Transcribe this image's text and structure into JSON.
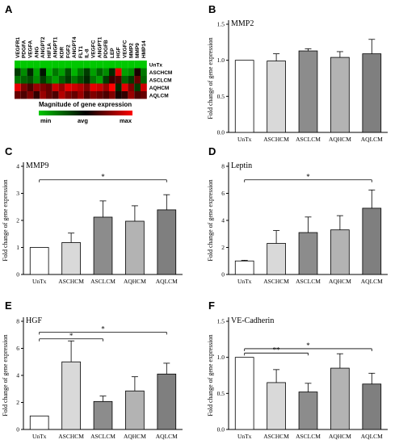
{
  "colors": {
    "untx": "#ffffff",
    "aschcm": "#d9d9d9",
    "asclcm": "#8c8c8c",
    "aqhcm": "#b3b3b3",
    "aqlcm": "#7f7f7f",
    "heat_min": "#00c800",
    "heat_avg": "#000000",
    "heat_max": "#ff0000"
  },
  "heatmap": {
    "panel_label": "A",
    "columns": [
      "VEGFR1",
      "PDGFA",
      "VEGFA",
      "ANG",
      "ANGPT2",
      "HIF1A",
      "ANGPT1",
      "KDR",
      "FGF2",
      "ANGPT4",
      "FLT1",
      "IL-8",
      "VEGFC",
      "ANGPT1",
      "PDGFB",
      "LEP",
      "HGF",
      "VEGFC",
      "MMP2",
      "MMP9",
      "HMP14"
    ],
    "rows": [
      "UnTx",
      "ASCHCM",
      "ASCLCM",
      "AQHCM",
      "AQLCM"
    ],
    "values": [
      [
        -1,
        -1,
        -1,
        -1,
        -1,
        -1,
        -1,
        -1,
        -1,
        -1,
        -1,
        -1,
        -1,
        -1,
        -1,
        -1,
        -1,
        -1,
        -1,
        -1,
        -1
      ],
      [
        -0.3,
        -0.7,
        -0.2,
        -0.8,
        -0.1,
        -0.9,
        -0.6,
        -0.8,
        -0.4,
        -0.9,
        -0.6,
        -0.3,
        -0.8,
        -0.5,
        -0.7,
        -0.2,
        0.9,
        -0.8,
        -0.7,
        0.1,
        -0.6
      ],
      [
        -0.6,
        -0.5,
        -0.4,
        -0.7,
        -0.3,
        -0.6,
        -0.8,
        -0.5,
        -0.3,
        -0.6,
        -0.4,
        -0.2,
        -0.6,
        -0.8,
        -0.3,
        0.2,
        0.3,
        -0.5,
        -0.3,
        0.4,
        -0.5
      ],
      [
        0.9,
        0.5,
        0.3,
        0.6,
        0.5,
        0.4,
        0.8,
        0.6,
        0.9,
        0.8,
        0.7,
        0.5,
        0.9,
        0.8,
        0.6,
        1,
        -0.2,
        0.9,
        0.5,
        -0.3,
        0.8
      ],
      [
        0.4,
        0.3,
        0.5,
        0.2,
        0.6,
        0.4,
        0.3,
        0.7,
        0.5,
        0.4,
        0.6,
        0.3,
        0.5,
        0.4,
        0.3,
        0.5,
        0.1,
        0.2,
        0.6,
        0.3,
        0.4
      ]
    ],
    "legend_title": "Magnitude of gene expression",
    "legend_labels": [
      "min",
      "avg",
      "max"
    ]
  },
  "chart_data": [
    {
      "panel_label": "B",
      "type": "bar",
      "title": "MMP2",
      "categories": [
        "UnTx",
        "ASCHCM",
        "ASCLCM",
        "AQHCM",
        "AQLCM"
      ],
      "values": [
        1.0,
        0.99,
        1.13,
        1.04,
        1.09
      ],
      "errors": [
        0.01,
        0.1,
        0.03,
        0.08,
        0.2
      ],
      "ylabel": "Fold change of gene expression",
      "ylim": [
        0,
        1.5
      ],
      "yticks": [
        "0.0",
        "0.5",
        "1.0",
        "1.5"
      ],
      "ytick_values": [
        0,
        0.5,
        1.0,
        1.5
      ],
      "significance": []
    },
    {
      "panel_label": "C",
      "type": "bar",
      "title": "MMP9",
      "categories": [
        "UnTx",
        "ASCHCM",
        "ASCLCM",
        "AQHCM",
        "AQLCM"
      ],
      "values": [
        1.0,
        1.18,
        2.12,
        1.97,
        2.39
      ],
      "errors": [
        0.02,
        0.35,
        0.6,
        0.57,
        0.56
      ],
      "ylabel": "Fold change of gene expression",
      "ylim": [
        0,
        4
      ],
      "yticks": [
        "0",
        "1",
        "2",
        "3",
        "4"
      ],
      "ytick_values": [
        0,
        1,
        2,
        3,
        4
      ],
      "significance": [
        {
          "from": 0,
          "to": 4,
          "y": 3.5,
          "label": "*"
        }
      ]
    },
    {
      "panel_label": "D",
      "type": "bar",
      "title": "Leptin",
      "categories": [
        "UnTx",
        "ASCHCM",
        "ASCLCM",
        "AQHCM",
        "AQLCM"
      ],
      "values": [
        1.0,
        2.3,
        3.1,
        3.3,
        4.9
      ],
      "errors": [
        0.05,
        0.95,
        1.15,
        1.05,
        1.35
      ],
      "ylabel": "Fold change of gene expression",
      "ylim": [
        0,
        8
      ],
      "yticks": [
        "0",
        "2",
        "4",
        "6",
        "8"
      ],
      "ytick_values": [
        0,
        2,
        4,
        6,
        8
      ],
      "significance": [
        {
          "from": 0,
          "to": 4,
          "y": 7.0,
          "label": "*"
        }
      ]
    },
    {
      "panel_label": "E",
      "type": "bar",
      "title": "HGF",
      "categories": [
        "UnTx",
        "ASCHCM",
        "ASCLCM",
        "AQHCM",
        "AQLCM"
      ],
      "values": [
        1.0,
        5.0,
        2.07,
        2.85,
        4.1
      ],
      "errors": [
        0.02,
        1.55,
        0.4,
        1.05,
        0.8
      ],
      "ylabel": "Fold change of gene expression",
      "ylim": [
        0,
        8
      ],
      "yticks": [
        "0",
        "2",
        "4",
        "6",
        "8"
      ],
      "ytick_values": [
        0,
        2,
        4,
        6,
        8
      ],
      "significance": [
        {
          "from": 0,
          "to": 2,
          "y": 6.7,
          "label": "*"
        },
        {
          "from": 0,
          "to": 4,
          "y": 7.2,
          "label": "*"
        }
      ]
    },
    {
      "panel_label": "F",
      "type": "bar",
      "title": "VE-Cadherin",
      "categories": [
        "UnTx",
        "ASCHCM",
        "ASCLCM",
        "AQHCM",
        "AQLCM"
      ],
      "values": [
        1.0,
        0.65,
        0.52,
        0.85,
        0.63
      ],
      "errors": [
        0.01,
        0.18,
        0.12,
        0.2,
        0.15
      ],
      "ylabel": "Fold change of gene expression",
      "ylim": [
        0,
        1.5
      ],
      "yticks": [
        "0.0",
        "0.5",
        "1.0",
        "1.5"
      ],
      "ytick_values": [
        0,
        0.5,
        1.0,
        1.5
      ],
      "significance": [
        {
          "from": 0,
          "to": 2,
          "y": 1.06,
          "label": "**"
        },
        {
          "from": 0,
          "to": 4,
          "y": 1.12,
          "label": "*"
        }
      ]
    }
  ]
}
